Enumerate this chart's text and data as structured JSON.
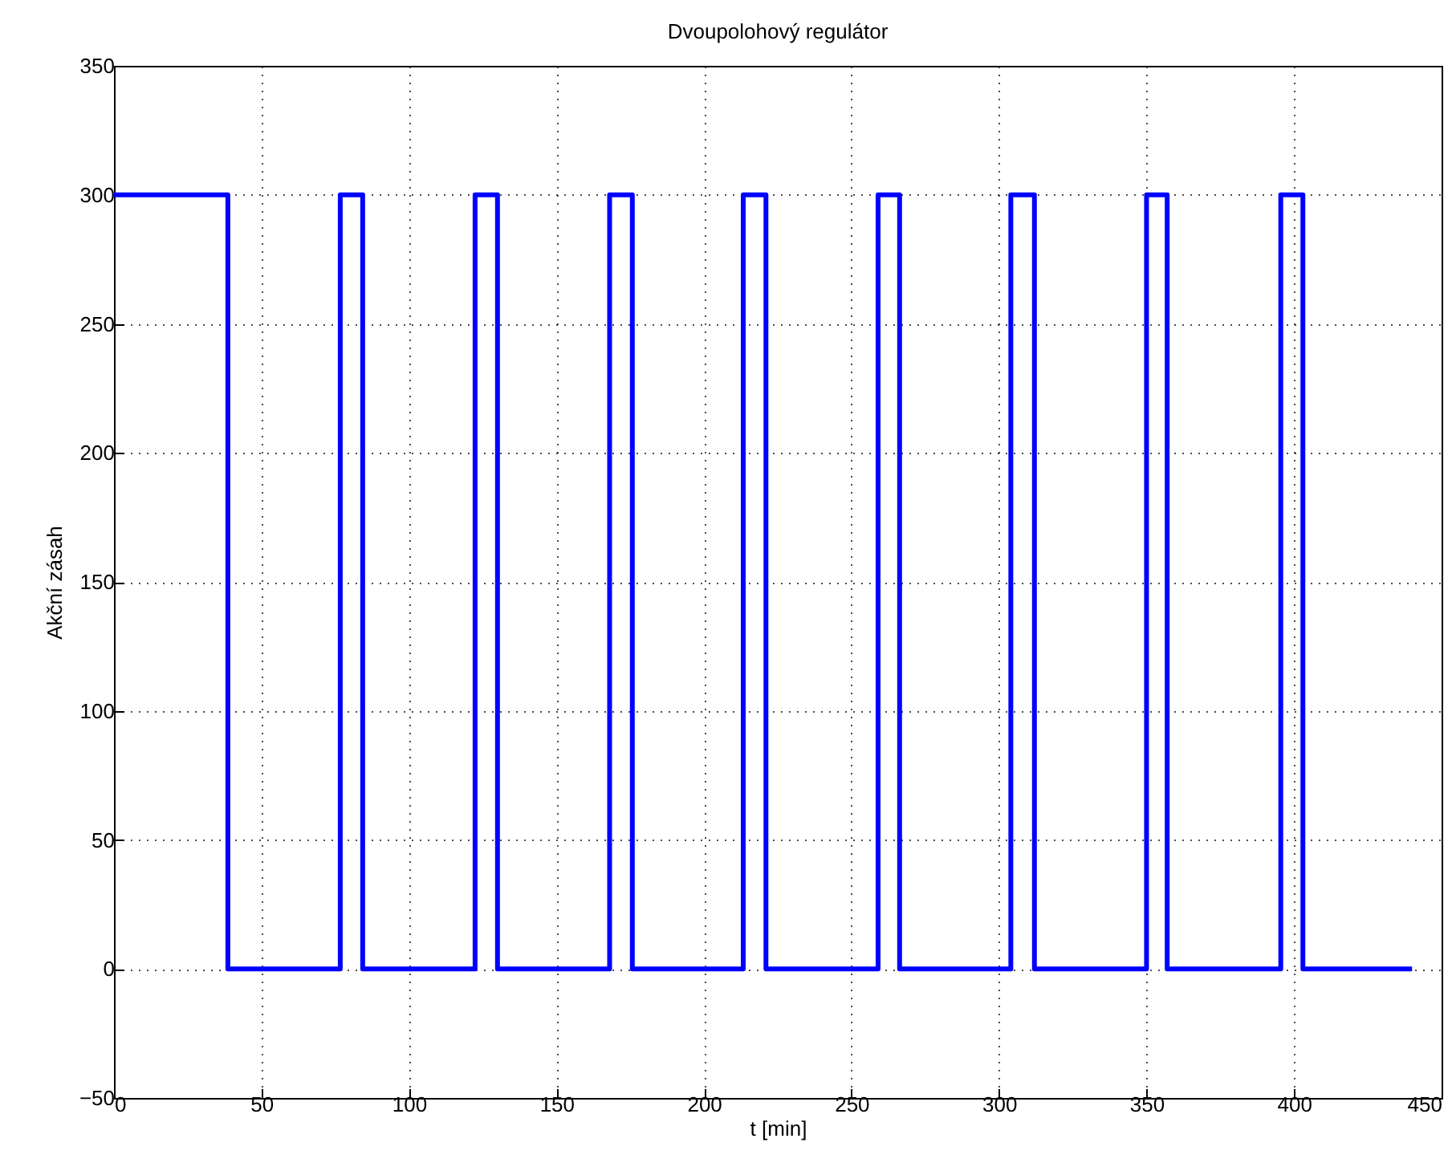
{
  "chart_data": {
    "type": "step",
    "title": "Dvoupolohový regulátor",
    "xlabel": "t [min]",
    "ylabel": "Akční zásah",
    "x": [
      0,
      38.6,
      76.7,
      84.3,
      122.4,
      130,
      168,
      175.7,
      213.3,
      221,
      259,
      266.3,
      304,
      312,
      350,
      357,
      395.5,
      403,
      440
    ],
    "series": [
      {
        "color": "#0000ff",
        "values": [
          300,
          0,
          300,
          0,
          300,
          0,
          300,
          0,
          300,
          0,
          300,
          0,
          300,
          0,
          300,
          0,
          300,
          0,
          0
        ]
      }
    ],
    "xlim": [
      0,
      450
    ],
    "xticks": [
      0,
      50,
      100,
      150,
      200,
      250,
      300,
      350,
      400,
      450
    ],
    "ylim": [
      -50,
      350
    ],
    "yticks": [
      -50,
      0,
      50,
      100,
      150,
      200,
      250,
      300,
      350
    ],
    "grid": true,
    "legend": false,
    "line_style": "solid"
  }
}
